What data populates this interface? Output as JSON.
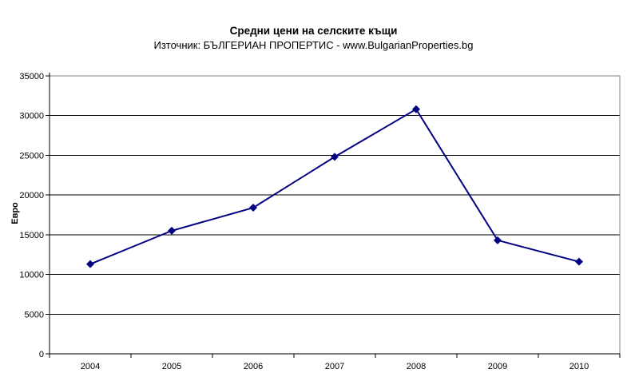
{
  "chart_data": {
    "type": "line",
    "title": "Средни цени на селските къщи",
    "subtitle": "Източник: БЪЛГЕРИАН ПРОПЕРТИС - www.BulgarianProperties.bg",
    "ylabel": "Евро",
    "xlabel": "",
    "categories": [
      "2004",
      "2005",
      "2006",
      "2007",
      "2008",
      "2009",
      "2010"
    ],
    "values": [
      11300,
      15500,
      18400,
      24800,
      30800,
      14300,
      11600
    ],
    "ylim": [
      0,
      35000
    ],
    "ytick_step": 5000,
    "ytick_labels": [
      "0",
      "5000",
      "10000",
      "15000",
      "20000",
      "25000",
      "30000",
      "35000"
    ],
    "grid": "horizontal-on",
    "legend": "none",
    "marker": "diamond",
    "colors": {
      "line": "#000080",
      "marker": "#000080",
      "gridline": "#000000",
      "axis": "#000000",
      "plot_border": "#808080",
      "background": "#ffffff",
      "text": "#000000"
    }
  }
}
